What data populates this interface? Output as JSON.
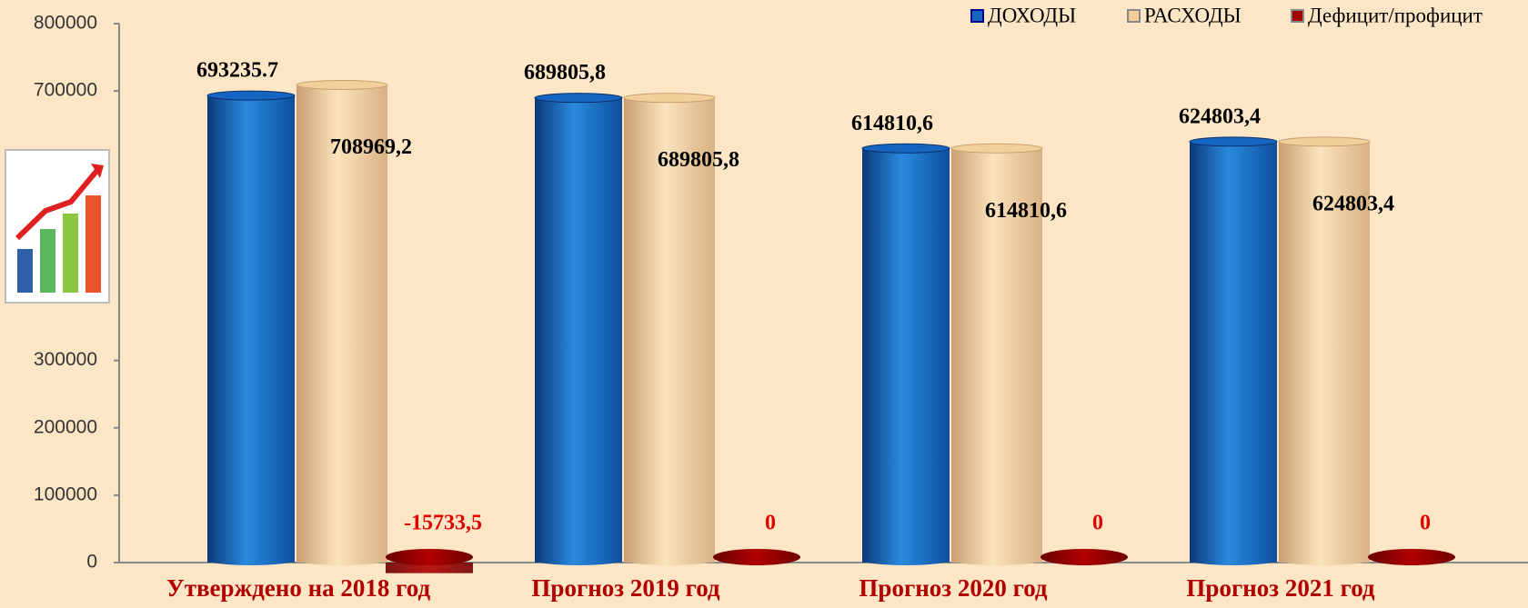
{
  "chart_data": {
    "type": "bar",
    "categories": [
      "Утверждено на 2018 год",
      "Прогноз 2019 год",
      "Прогноз 2020 год",
      "Прогноз 2021 год"
    ],
    "series": [
      {
        "name": "ДОХОДЫ",
        "color": "#1565c0",
        "values": [
          693235.7,
          689805.8,
          614810.6,
          624803.4
        ],
        "value_labels": [
          "693235.7",
          "689805,8",
          "614810,6",
          "624803,4"
        ]
      },
      {
        "name": "РАСХОДЫ",
        "color": "#f3cf9b",
        "values": [
          708969.2,
          689805.8,
          614810.6,
          624803.4
        ],
        "value_labels": [
          "708969,2",
          "689805,8",
          "614810,6",
          "624803,4"
        ]
      },
      {
        "name": "Дефицит/профицит",
        "color": "#a00000",
        "values": [
          -15733.5,
          0,
          0,
          0
        ],
        "value_labels": [
          "-15733,5",
          "0",
          "0",
          "0"
        ]
      }
    ],
    "ylim": [
      0,
      800000
    ],
    "yticks": [
      0,
      100000,
      200000,
      300000,
      700000,
      800000
    ],
    "legend": "top-right"
  }
}
